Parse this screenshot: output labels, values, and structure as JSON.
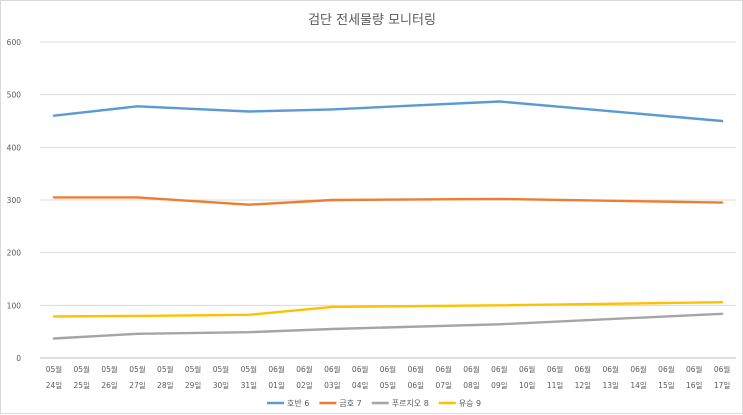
{
  "chart_data": {
    "type": "line",
    "title": "검단 전세물량 모니터링",
    "xlabel": "",
    "ylabel": "",
    "ylim": [
      0,
      600
    ],
    "yticks": [
      0,
      100,
      200,
      300,
      400,
      500,
      600
    ],
    "grid": true,
    "legend_position": "bottom",
    "categories": [
      [
        "05월",
        "24일"
      ],
      [
        "05월",
        "25일"
      ],
      [
        "05월",
        "26일"
      ],
      [
        "05월",
        "27일"
      ],
      [
        "05월",
        "28일"
      ],
      [
        "05월",
        "29일"
      ],
      [
        "05월",
        "30일"
      ],
      [
        "05월",
        "31일"
      ],
      [
        "06월",
        "01일"
      ],
      [
        "06월",
        "02일"
      ],
      [
        "06월",
        "03일"
      ],
      [
        "06월",
        "04일"
      ],
      [
        "06월",
        "05일"
      ],
      [
        "06월",
        "06일"
      ],
      [
        "06월",
        "07일"
      ],
      [
        "06월",
        "08일"
      ],
      [
        "06월",
        "09일"
      ],
      [
        "06월",
        "10일"
      ],
      [
        "06월",
        "11일"
      ],
      [
        "06월",
        "12일"
      ],
      [
        "06월",
        "13일"
      ],
      [
        "06월",
        "14일"
      ],
      [
        "06월",
        "15일"
      ],
      [
        "06월",
        "16일"
      ],
      [
        "06월",
        "17일"
      ]
    ],
    "series": [
      {
        "name": "호반 6",
        "color": "#5b9bd5",
        "points": [
          [
            0,
            460
          ],
          [
            3,
            478
          ],
          [
            7,
            468
          ],
          [
            10,
            472
          ],
          [
            16,
            487
          ],
          [
            24,
            450
          ]
        ]
      },
      {
        "name": "금호 7",
        "color": "#ed7d31",
        "points": [
          [
            0,
            305
          ],
          [
            3,
            305
          ],
          [
            7,
            291
          ],
          [
            10,
            300
          ],
          [
            16,
            302
          ],
          [
            24,
            295
          ]
        ]
      },
      {
        "name": "푸르지오 8",
        "color": "#a5a5a5",
        "points": [
          [
            0,
            37
          ],
          [
            3,
            46
          ],
          [
            7,
            49
          ],
          [
            10,
            55
          ],
          [
            16,
            64
          ],
          [
            24,
            84
          ]
        ]
      },
      {
        "name": "유승 9",
        "color": "#ffc000",
        "points": [
          [
            0,
            79
          ],
          [
            3,
            80
          ],
          [
            7,
            82
          ],
          [
            10,
            97
          ],
          [
            16,
            100
          ],
          [
            24,
            106
          ]
        ]
      }
    ]
  }
}
